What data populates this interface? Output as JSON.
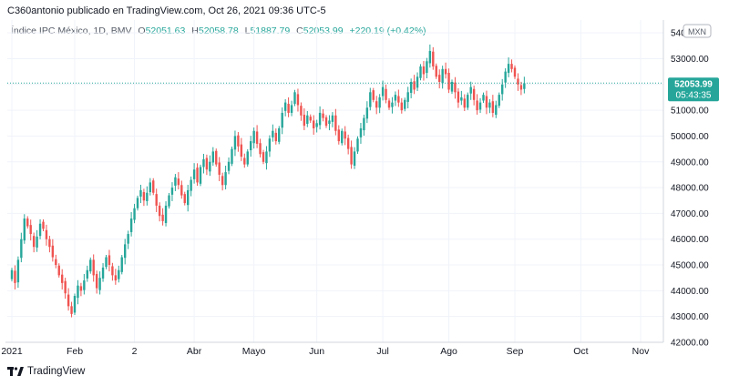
{
  "header": {
    "publisher_text": "C360antonio publicado en TradingView.com, Oct 26, 2021 09:36 UTC-5"
  },
  "legend": {
    "symbol": "Índice IPC México, 1D, BMV",
    "open_label": "O",
    "open": "52051.63",
    "high_label": "H",
    "high": "52058.78",
    "low_label": "L",
    "low": "51887.79",
    "close_label": "C",
    "close": "52053.99",
    "change": "+220.19 (+0.42%)"
  },
  "price_tag": {
    "price": "52053.99",
    "countdown": "05:43:35"
  },
  "currency_badge": "MXN",
  "footer": {
    "brand": "TradingView"
  },
  "colors": {
    "up": "#26a69a",
    "down": "#ef5350",
    "grid": "#f0f3fa",
    "axis": "#787b86"
  },
  "chart_data": {
    "type": "candlestick",
    "ylim": [
      42000,
      54500
    ],
    "y_ticks": [
      42000,
      43000,
      44000,
      45000,
      46000,
      47000,
      48000,
      49000,
      50000,
      51000,
      52000,
      53000,
      54000
    ],
    "y_tick_labels": [
      "42000.00",
      "43000.00",
      "44000.00",
      "45000.00",
      "46000.00",
      "47000.00",
      "48000.00",
      "49000.00",
      "50000.00",
      "51000.00",
      "52000.00",
      "53000.00",
      "54000.00"
    ],
    "x_ticks": [
      {
        "label": "2021",
        "index": 0
      },
      {
        "label": "Feb",
        "index": 20
      },
      {
        "label": "2",
        "index": 39
      },
      {
        "label": "Abr",
        "index": 58
      },
      {
        "label": "Mayo",
        "index": 77
      },
      {
        "label": "Jun",
        "index": 97
      },
      {
        "label": "Jul",
        "index": 118
      },
      {
        "label": "Ago",
        "index": 139
      },
      {
        "label": "Sep",
        "index": 160
      },
      {
        "label": "Oct",
        "index": 181
      },
      {
        "label": "Nov",
        "index": 200
      }
    ],
    "closes": [
      44800,
      44300,
      45200,
      46000,
      46800,
      46500,
      46200,
      45700,
      46100,
      46600,
      46400,
      46000,
      45700,
      45300,
      45000,
      44600,
      44300,
      43900,
      43400,
      43100,
      43800,
      44200,
      44000,
      44400,
      44800,
      45200,
      44600,
      44100,
      44500,
      44900,
      45300,
      45000,
      44600,
      44400,
      44800,
      45300,
      45800,
      46200,
      46800,
      47200,
      47600,
      47900,
      47500,
      47800,
      48200,
      47800,
      47300,
      46900,
      46700,
      47300,
      47700,
      48000,
      48400,
      48100,
      47700,
      47400,
      47900,
      48300,
      48700,
      48200,
      48800,
      49100,
      48700,
      49000,
      49400,
      48900,
      48500,
      48100,
      48600,
      49000,
      49500,
      50000,
      49600,
      49200,
      48900,
      49400,
      49800,
      50200,
      49700,
      49300,
      49000,
      49400,
      49900,
      50200,
      49800,
      50300,
      50900,
      51300,
      50900,
      51200,
      51700,
      51200,
      50800,
      50400,
      50800,
      50600,
      50300,
      50500,
      50900,
      50700,
      50400,
      50600,
      50800,
      50200,
      49800,
      50200,
      49900,
      49500,
      48900,
      49400,
      49900,
      50300,
      50700,
      51100,
      51700,
      51400,
      51100,
      51500,
      51900,
      51400,
      51100,
      51300,
      51600,
      51300,
      51000,
      51400,
      51700,
      52100,
      51800,
      52300,
      52700,
      52400,
      52900,
      53300,
      52700,
      52300,
      52100,
      52600,
      52400,
      51800,
      52100,
      51700,
      51300,
      51500,
      51100,
      51600,
      51900,
      51400,
      51000,
      51300,
      51600,
      51100,
      51300,
      50900,
      51200,
      51600,
      52000,
      52500,
      52800,
      52600,
      52300,
      52000,
      51800,
      52050
    ]
  }
}
